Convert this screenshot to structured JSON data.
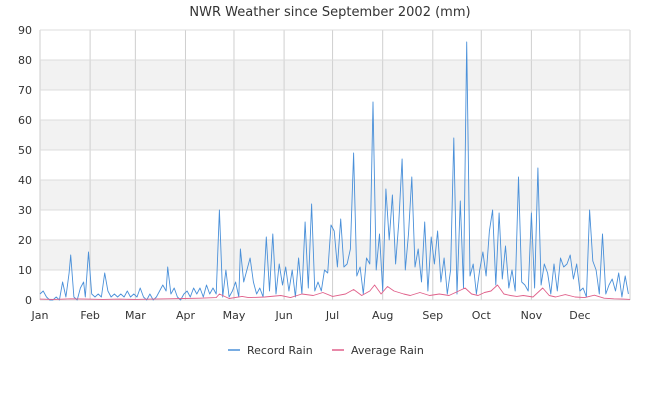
{
  "chart_data": {
    "type": "line",
    "title": "NWR Weather since September 2002 (mm)",
    "xlabel": "",
    "ylabel": "",
    "ylim": [
      0,
      90
    ],
    "y_ticks": [
      "0",
      "10",
      "20",
      "30",
      "40",
      "50",
      "60",
      "70",
      "80",
      "90"
    ],
    "x_ticks": [
      {
        "label": "Jan",
        "day": 1
      },
      {
        "label": "Feb",
        "day": 32
      },
      {
        "label": "Mar",
        "day": 60
      },
      {
        "label": "Apr",
        "day": 91
      },
      {
        "label": "May",
        "day": 121
      },
      {
        "label": "Jun",
        "day": 152
      },
      {
        "label": "Jul",
        "day": 182
      },
      {
        "label": "Aug",
        "day": 213
      },
      {
        "label": "Sep",
        "day": 244
      },
      {
        "label": "Oct",
        "day": 274
      },
      {
        "label": "Nov",
        "day": 305
      },
      {
        "label": "Dec",
        "day": 335
      }
    ],
    "x_range": [
      1,
      366
    ],
    "grid": true,
    "legend_position": "bottom-center",
    "series": [
      {
        "name": "Record Rain",
        "color": "#4a90d9",
        "points": [
          [
            1,
            2
          ],
          [
            3,
            3
          ],
          [
            5,
            1
          ],
          [
            7,
            0
          ],
          [
            9,
            0
          ],
          [
            11,
            1
          ],
          [
            13,
            0
          ],
          [
            15,
            6
          ],
          [
            17,
            1
          ],
          [
            19,
            9
          ],
          [
            20,
            15
          ],
          [
            22,
            1
          ],
          [
            24,
            0
          ],
          [
            26,
            4
          ],
          [
            28,
            6
          ],
          [
            29,
            1
          ],
          [
            31,
            16
          ],
          [
            33,
            2
          ],
          [
            35,
            1
          ],
          [
            37,
            2
          ],
          [
            39,
            1
          ],
          [
            41,
            9
          ],
          [
            43,
            3
          ],
          [
            45,
            1
          ],
          [
            47,
            2
          ],
          [
            49,
            1
          ],
          [
            51,
            2
          ],
          [
            53,
            1
          ],
          [
            55,
            3
          ],
          [
            57,
            1
          ],
          [
            59,
            2
          ],
          [
            61,
            1
          ],
          [
            63,
            4
          ],
          [
            65,
            1
          ],
          [
            67,
            0
          ],
          [
            69,
            2
          ],
          [
            71,
            0
          ],
          [
            73,
            1
          ],
          [
            75,
            3
          ],
          [
            77,
            5
          ],
          [
            79,
            3
          ],
          [
            80,
            11
          ],
          [
            82,
            2
          ],
          [
            84,
            4
          ],
          [
            86,
            1
          ],
          [
            88,
            0
          ],
          [
            90,
            2
          ],
          [
            92,
            3
          ],
          [
            94,
            1
          ],
          [
            96,
            4
          ],
          [
            98,
            2
          ],
          [
            100,
            4
          ],
          [
            102,
            1
          ],
          [
            104,
            5
          ],
          [
            106,
            2
          ],
          [
            108,
            4
          ],
          [
            110,
            2
          ],
          [
            112,
            30
          ],
          [
            114,
            1
          ],
          [
            116,
            10
          ],
          [
            118,
            1
          ],
          [
            120,
            3
          ],
          [
            122,
            6
          ],
          [
            124,
            1
          ],
          [
            125,
            17
          ],
          [
            127,
            6
          ],
          [
            129,
            10
          ],
          [
            131,
            14
          ],
          [
            133,
            6
          ],
          [
            135,
            2
          ],
          [
            137,
            4
          ],
          [
            139,
            1
          ],
          [
            141,
            21
          ],
          [
            143,
            3
          ],
          [
            145,
            22
          ],
          [
            147,
            2
          ],
          [
            149,
            12
          ],
          [
            151,
            5
          ],
          [
            153,
            11
          ],
          [
            155,
            3
          ],
          [
            157,
            10
          ],
          [
            159,
            1
          ],
          [
            161,
            14
          ],
          [
            163,
            2
          ],
          [
            165,
            26
          ],
          [
            167,
            4
          ],
          [
            169,
            32
          ],
          [
            171,
            3
          ],
          [
            173,
            6
          ],
          [
            175,
            3
          ],
          [
            177,
            10
          ],
          [
            179,
            9
          ],
          [
            181,
            25
          ],
          [
            183,
            23
          ],
          [
            185,
            11
          ],
          [
            187,
            27
          ],
          [
            189,
            11
          ],
          [
            191,
            12
          ],
          [
            193,
            17
          ],
          [
            195,
            49
          ],
          [
            197,
            8
          ],
          [
            199,
            11
          ],
          [
            201,
            2
          ],
          [
            203,
            14
          ],
          [
            205,
            12
          ],
          [
            207,
            66
          ],
          [
            209,
            10
          ],
          [
            211,
            22
          ],
          [
            213,
            3
          ],
          [
            215,
            37
          ],
          [
            217,
            20
          ],
          [
            219,
            35
          ],
          [
            221,
            12
          ],
          [
            223,
            26
          ],
          [
            225,
            47
          ],
          [
            227,
            10
          ],
          [
            229,
            22
          ],
          [
            231,
            41
          ],
          [
            233,
            11
          ],
          [
            235,
            17
          ],
          [
            237,
            6
          ],
          [
            239,
            26
          ],
          [
            241,
            3
          ],
          [
            243,
            21
          ],
          [
            245,
            12
          ],
          [
            247,
            23
          ],
          [
            249,
            6
          ],
          [
            251,
            14
          ],
          [
            253,
            2
          ],
          [
            255,
            10
          ],
          [
            257,
            54
          ],
          [
            259,
            2
          ],
          [
            261,
            33
          ],
          [
            263,
            4
          ],
          [
            265,
            86
          ],
          [
            267,
            8
          ],
          [
            269,
            12
          ],
          [
            271,
            2
          ],
          [
            273,
            10
          ],
          [
            275,
            16
          ],
          [
            277,
            8
          ],
          [
            279,
            23
          ],
          [
            281,
            30
          ],
          [
            283,
            5
          ],
          [
            285,
            29
          ],
          [
            287,
            7
          ],
          [
            289,
            18
          ],
          [
            291,
            4
          ],
          [
            293,
            10
          ],
          [
            295,
            3
          ],
          [
            297,
            41
          ],
          [
            299,
            6
          ],
          [
            301,
            5
          ],
          [
            303,
            3
          ],
          [
            305,
            29
          ],
          [
            307,
            4
          ],
          [
            309,
            44
          ],
          [
            311,
            5
          ],
          [
            313,
            12
          ],
          [
            315,
            9
          ],
          [
            317,
            2
          ],
          [
            319,
            12
          ],
          [
            321,
            3
          ],
          [
            323,
            14
          ],
          [
            325,
            11
          ],
          [
            327,
            12
          ],
          [
            329,
            15
          ],
          [
            331,
            7
          ],
          [
            333,
            12
          ],
          [
            335,
            3
          ],
          [
            337,
            4
          ],
          [
            339,
            1
          ],
          [
            341,
            30
          ],
          [
            343,
            13
          ],
          [
            345,
            10
          ],
          [
            347,
            2
          ],
          [
            349,
            22
          ],
          [
            351,
            2
          ],
          [
            353,
            5
          ],
          [
            355,
            7
          ],
          [
            357,
            3
          ],
          [
            359,
            9
          ],
          [
            361,
            1
          ],
          [
            363,
            8
          ],
          [
            365,
            2
          ]
        ]
      },
      {
        "name": "Average Rain",
        "color": "#e0608a",
        "points": [
          [
            1,
            0.3
          ],
          [
            10,
            0.2
          ],
          [
            20,
            0.4
          ],
          [
            30,
            0.3
          ],
          [
            40,
            0.2
          ],
          [
            50,
            0.3
          ],
          [
            60,
            0.2
          ],
          [
            70,
            0.3
          ],
          [
            80,
            0.4
          ],
          [
            90,
            0.5
          ],
          [
            100,
            0.6
          ],
          [
            110,
            0.8
          ],
          [
            112,
            2
          ],
          [
            118,
            0.5
          ],
          [
            126,
            1.2
          ],
          [
            130,
            0.8
          ],
          [
            140,
            1
          ],
          [
            150,
            1.5
          ],
          [
            156,
            0.8
          ],
          [
            163,
            2
          ],
          [
            170,
            1.5
          ],
          [
            176,
            2.5
          ],
          [
            182,
            1.2
          ],
          [
            190,
            2
          ],
          [
            195,
            3.5
          ],
          [
            200,
            1.5
          ],
          [
            205,
            3
          ],
          [
            208,
            5
          ],
          [
            212,
            2
          ],
          [
            216,
            4.5
          ],
          [
            220,
            3
          ],
          [
            226,
            2
          ],
          [
            230,
            1.5
          ],
          [
            236,
            2.5
          ],
          [
            242,
            1.5
          ],
          [
            248,
            2
          ],
          [
            254,
            1.5
          ],
          [
            260,
            3
          ],
          [
            264,
            4
          ],
          [
            268,
            2
          ],
          [
            272,
            1.5
          ],
          [
            276,
            2.5
          ],
          [
            280,
            3
          ],
          [
            284,
            5
          ],
          [
            288,
            2
          ],
          [
            292,
            1.5
          ],
          [
            296,
            1.2
          ],
          [
            300,
            1.5
          ],
          [
            306,
            1
          ],
          [
            312,
            4
          ],
          [
            316,
            1.5
          ],
          [
            320,
            1
          ],
          [
            326,
            1.8
          ],
          [
            332,
            1
          ],
          [
            338,
            0.8
          ],
          [
            344,
            1.6
          ],
          [
            350,
            0.6
          ],
          [
            356,
            0.4
          ],
          [
            362,
            0.3
          ],
          [
            366,
            0.2
          ]
        ]
      }
    ]
  }
}
